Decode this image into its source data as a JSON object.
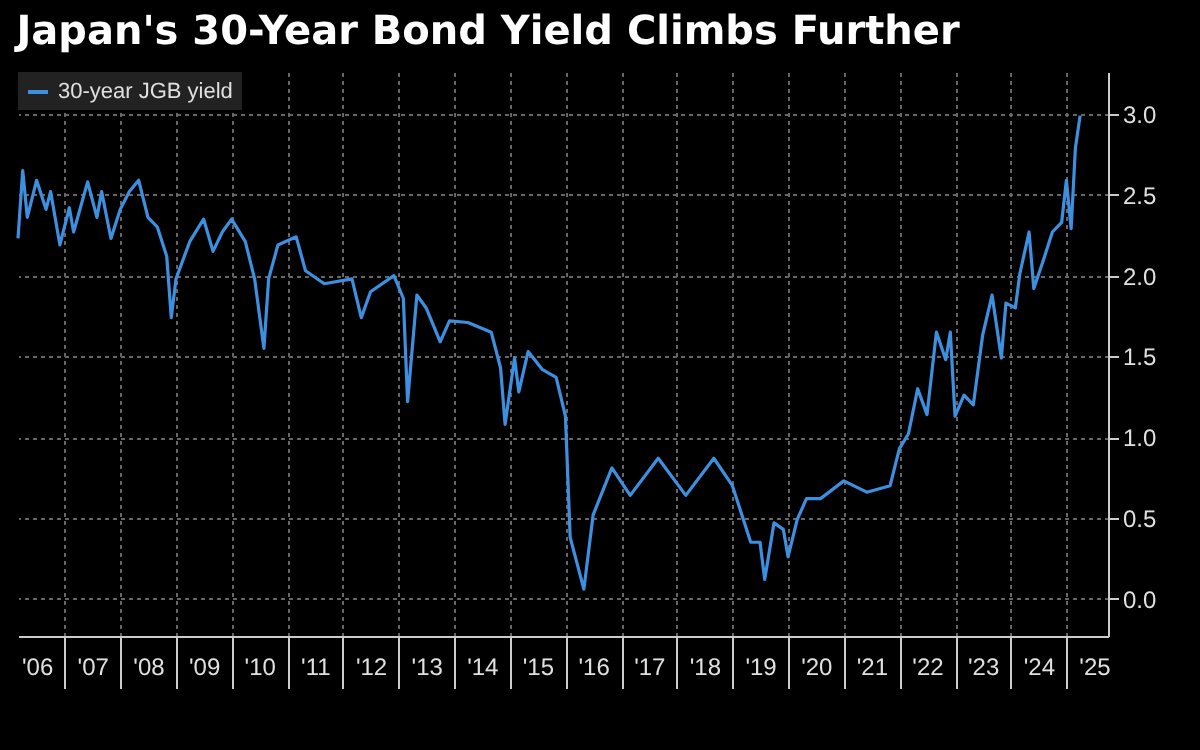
{
  "chart_data": {
    "type": "line",
    "title": "Japan's 30-Year Bond Yield Climbs Further",
    "x": [
      "2006-03",
      "2006-04",
      "2006-05",
      "2006-07",
      "2006-09",
      "2006-10",
      "2006-12",
      "2007-02",
      "2007-03",
      "2007-06",
      "2007-08",
      "2007-09",
      "2007-11",
      "2008-01",
      "2008-03",
      "2008-05",
      "2008-07",
      "2008-09",
      "2008-11",
      "2008-12",
      "2009-01",
      "2009-04",
      "2009-07",
      "2009-09",
      "2009-11",
      "2010-01",
      "2010-04",
      "2010-06",
      "2010-08",
      "2010-09",
      "2010-11",
      "2011-03",
      "2011-05",
      "2011-09",
      "2012-03",
      "2012-05",
      "2012-07",
      "2012-12",
      "2013-02",
      "2013-03",
      "2013-05",
      "2013-07",
      "2013-10",
      "2013-12",
      "2014-04",
      "2014-09",
      "2014-11",
      "2014-12",
      "2015-02",
      "2015-03",
      "2015-05",
      "2015-08",
      "2015-11",
      "2016-01",
      "2016-02",
      "2016-05",
      "2016-07",
      "2016-11",
      "2017-03",
      "2017-09",
      "2018-03",
      "2018-09",
      "2019-01",
      "2019-05",
      "2019-07",
      "2019-08",
      "2019-10",
      "2019-12",
      "2020-01",
      "2020-03",
      "2020-05",
      "2020-08",
      "2021-01",
      "2021-06",
      "2021-11",
      "2022-01",
      "2022-03",
      "2022-05",
      "2022-07",
      "2022-09",
      "2022-11",
      "2022-12",
      "2023-01",
      "2023-03",
      "2023-05",
      "2023-07",
      "2023-09",
      "2023-11",
      "2023-12",
      "2024-02",
      "2024-03",
      "2024-05",
      "2024-06",
      "2024-08",
      "2024-10",
      "2024-12",
      "2025-01",
      "2025-02",
      "2025-03",
      "2025-04"
    ],
    "series": [
      {
        "name": "30-year JGB yield",
        "color": "#3d8fe0",
        "values": [
          2.23,
          2.65,
          2.36,
          2.59,
          2.41,
          2.52,
          2.19,
          2.42,
          2.27,
          2.58,
          2.36,
          2.52,
          2.23,
          2.41,
          2.52,
          2.59,
          2.36,
          2.3,
          2.12,
          1.74,
          1.98,
          2.21,
          2.35,
          2.15,
          2.27,
          2.35,
          2.21,
          1.98,
          1.55,
          1.98,
          2.19,
          2.24,
          2.03,
          1.95,
          1.98,
          1.74,
          1.9,
          2.0,
          1.86,
          1.22,
          1.88,
          1.8,
          1.59,
          1.72,
          1.71,
          1.65,
          1.43,
          1.08,
          1.49,
          1.28,
          1.53,
          1.42,
          1.37,
          1.13,
          0.38,
          0.06,
          0.52,
          0.81,
          0.64,
          0.87,
          0.64,
          0.87,
          0.7,
          0.35,
          0.35,
          0.12,
          0.47,
          0.43,
          0.26,
          0.49,
          0.62,
          0.62,
          0.73,
          0.66,
          0.7,
          0.93,
          1.02,
          1.3,
          1.14,
          1.65,
          1.48,
          1.65,
          1.13,
          1.26,
          1.2,
          1.63,
          1.88,
          1.49,
          1.83,
          1.8,
          2.01,
          2.27,
          1.92,
          2.09,
          2.27,
          2.33,
          2.59,
          2.29,
          2.79,
          2.99
        ]
      }
    ],
    "xlim": [
      "2006-03",
      "2025-10"
    ],
    "xticks": [
      {
        "value": "2006-07",
        "label": "'06"
      },
      {
        "value": "2007",
        "label": null
      },
      {
        "value": "2007-07",
        "label": "'07"
      },
      {
        "value": "2008",
        "label": null
      },
      {
        "value": "2008-07",
        "label": "'08"
      },
      {
        "value": "2009",
        "label": null
      },
      {
        "value": "2009-07",
        "label": "'09"
      },
      {
        "value": "2010",
        "label": null
      },
      {
        "value": "2010-07",
        "label": "'10"
      },
      {
        "value": "2011",
        "label": null
      },
      {
        "value": "2011-07",
        "label": "'11"
      },
      {
        "value": "2012",
        "label": null
      },
      {
        "value": "2012-07",
        "label": "'12"
      },
      {
        "value": "2013",
        "label": null
      },
      {
        "value": "2013-07",
        "label": "'13"
      },
      {
        "value": "2014",
        "label": null
      },
      {
        "value": "2014-07",
        "label": "'14"
      },
      {
        "value": "2015",
        "label": null
      },
      {
        "value": "2015-07",
        "label": "'15"
      },
      {
        "value": "2016",
        "label": null
      },
      {
        "value": "2016-07",
        "label": "'16"
      },
      {
        "value": "2017",
        "label": null
      },
      {
        "value": "2017-07",
        "label": "'17"
      },
      {
        "value": "2018",
        "label": null
      },
      {
        "value": "2018-07",
        "label": "'18"
      },
      {
        "value": "2019",
        "label": null
      },
      {
        "value": "2019-07",
        "label": "'19"
      },
      {
        "value": "2020",
        "label": null
      },
      {
        "value": "2020-07",
        "label": "'20"
      },
      {
        "value": "2021",
        "label": null
      },
      {
        "value": "2021-07",
        "label": "'21"
      },
      {
        "value": "2022",
        "label": null
      },
      {
        "value": "2022-07",
        "label": "'22"
      },
      {
        "value": "2023",
        "label": null
      },
      {
        "value": "2023-07",
        "label": "'23"
      },
      {
        "value": "2024",
        "label": null
      },
      {
        "value": "2024-07",
        "label": "'24"
      },
      {
        "value": "2025",
        "label": null
      },
      {
        "value": "2025-07",
        "label": "'25"
      }
    ],
    "ylim": [
      -0.23,
      3.26
    ],
    "yticks": [
      {
        "value": 0,
        "label": "0.0"
      },
      {
        "value": 0.5,
        "label": "0.5"
      },
      {
        "value": 1,
        "label": "1.0"
      },
      {
        "value": 1.5,
        "label": "1.5"
      },
      {
        "value": 2,
        "label": "2.0"
      },
      {
        "value": 2.5,
        "label": "2.5"
      },
      {
        "value": 3,
        "label": "3.0"
      }
    ],
    "grid": true,
    "legend": "top left",
    "line_style": "solid"
  }
}
